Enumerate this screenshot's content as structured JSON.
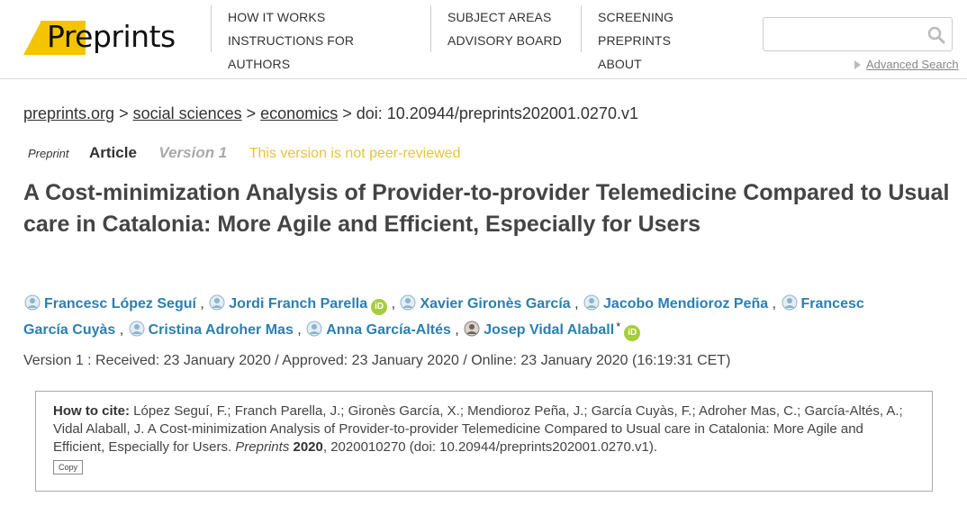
{
  "header": {
    "logo": {
      "pre": "Pre",
      "rest": "prints"
    },
    "nav": {
      "how_it_works": "HOW IT WORKS",
      "instructions": "INSTRUCTIONS FOR AUTHORS",
      "subject_areas": "SUBJECT AREAS",
      "advisory_board": "ADVISORY BOARD",
      "screening": "SCREENING PREPRINTS",
      "about": "ABOUT"
    },
    "search": {
      "value": "",
      "placeholder": ""
    },
    "advanced_search": "Advanced Search"
  },
  "breadcrumb": {
    "home": "preprints.org",
    "sep1": " > ",
    "subject": "social sciences",
    "sep2": " > ",
    "topic": "economics",
    "sep3": " > ",
    "doi": "doi: 10.20944/preprints202001.0270.v1"
  },
  "meta": {
    "type": "Preprint",
    "kind": "Article",
    "version": "Version 1",
    "peer_status": "This version is not peer-reviewed"
  },
  "title": "A Cost-minimization Analysis of Provider-to-provider Telemedicine Compared to Usual care in Catalonia: More Agile and Efficient, Especially for Users",
  "authors": {
    "a1": "Francesc López Seguí",
    "a2": "Jordi Franch Parella",
    "a3": "Xavier Gironès García",
    "a4": "Jacobo Mendioroz Peña",
    "a5a": "Francesc",
    "a5b": "García Cuyàs",
    "a6": "Cristina Adroher Mas",
    "a7": "Anna García-Altés",
    "a8": "Josep Vidal Alaball",
    "sep": " , ",
    "orcid": "iD",
    "star": "*"
  },
  "dates": "Version 1 : Received: 23 January 2020 / Approved: 23 January 2020 / Online: 23 January 2020 (16:19:31 CET)",
  "cite": {
    "label": "How to cite:",
    "text1": " López Seguí, F.; Franch Parella, J.; Gironès García, X.; Mendioroz Peña, J.; García Cuyàs, F.; Adroher Mas, C.; García-Altés, A.; Vidal Alaball, J. A Cost-minimization Analysis of Provider-to-provider Telemedicine Compared to Usual care in Catalonia: More Agile and Efficient, Especially for Users. ",
    "journal": "Preprints",
    "year": "2020",
    "text2": ", 2020010270 (doi: 10.20944/preprints202001.0270.v1).",
    "copy": "Copy"
  },
  "colors": {
    "brand_yellow": "#f5c400",
    "author_blue": "#2c7fb0",
    "orcid_green": "#a6ce39",
    "peer_warning": "#e8c33b"
  }
}
